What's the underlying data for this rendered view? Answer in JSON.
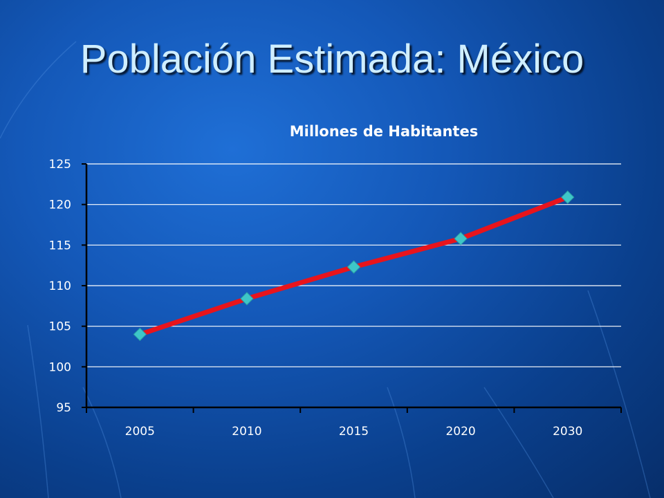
{
  "slide": {
    "title": "Población Estimada: México",
    "background_color": "#1458b8"
  },
  "chart_data": {
    "type": "line",
    "title": "Millones de Habitantes",
    "xlabel": "",
    "ylabel": "",
    "categories": [
      "2005",
      "2010",
      "2015",
      "2020",
      "2030"
    ],
    "series": [
      {
        "values": [
          104.0,
          108.4,
          112.3,
          115.8,
          120.9
        ],
        "line_color": "#e8141c",
        "marker_color": "#3ec6c8",
        "marker": "diamond"
      }
    ],
    "ylim": [
      95,
      125
    ],
    "yticks": [
      95,
      100,
      105,
      110,
      115,
      120,
      125
    ],
    "grid": true,
    "legend": "none"
  }
}
